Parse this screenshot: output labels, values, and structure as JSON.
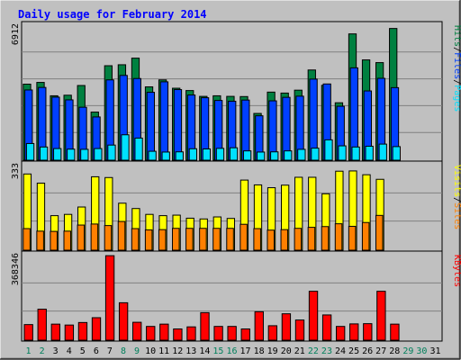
{
  "page": {
    "title": "Daily usage for February 2014"
  },
  "colors": {
    "background": "#c0c0c0",
    "hits": "#008040",
    "files": "#0040ff",
    "pages": "#00e0ff",
    "visits": "#ffff00",
    "sites": "#ff8000",
    "kbytes": "#ff0000",
    "title": "#0000ff",
    "weekend_label": "#00805c",
    "weekday_label": "#000000"
  },
  "chart_data": [
    {
      "type": "bar",
      "title": "Daily usage for February 2014",
      "ylabel_parts": [
        "Pages",
        "Files",
        "Hits"
      ],
      "ymax_label": "6912",
      "ylim": [
        0,
        6912
      ],
      "series": [
        {
          "name": "Hits",
          "values": [
            3920,
            4010,
            3320,
            3350,
            3850,
            2480,
            4870,
            4920,
            5260,
            3780,
            4140,
            3710,
            3590,
            3290,
            3320,
            3290,
            3280,
            2410,
            3510,
            3460,
            3610,
            4650,
            3860,
            2960,
            6510,
            5170,
            5030,
            6790,
            0,
            0,
            0
          ]
        },
        {
          "name": "Files",
          "values": [
            3620,
            3750,
            3250,
            3110,
            2730,
            2230,
            4140,
            4370,
            4210,
            3500,
            4040,
            3640,
            3360,
            3220,
            3080,
            3040,
            3100,
            2290,
            3060,
            3240,
            3300,
            4180,
            3930,
            2780,
            4760,
            3570,
            4220,
            3740,
            0,
            0,
            0
          ]
        },
        {
          "name": "Pages",
          "values": [
            860,
            680,
            600,
            570,
            560,
            600,
            780,
            1310,
            1140,
            460,
            420,
            430,
            590,
            580,
            610,
            640,
            480,
            420,
            430,
            480,
            560,
            620,
            1050,
            740,
            680,
            720,
            830,
            700,
            0,
            0,
            0
          ]
        }
      ],
      "x": [
        1,
        2,
        3,
        4,
        5,
        6,
        7,
        8,
        9,
        10,
        11,
        12,
        13,
        14,
        15,
        16,
        17,
        18,
        19,
        20,
        21,
        22,
        23,
        24,
        25,
        26,
        27,
        28,
        29,
        30,
        31
      ]
    },
    {
      "type": "bar",
      "ylabel_parts": [
        "Sites",
        "Visits"
      ],
      "ymax_label": "333",
      "ylim": [
        0,
        333
      ],
      "series": [
        {
          "name": "Visits",
          "values": [
            300,
            264,
            136,
            141,
            170,
            289,
            286,
            185,
            164,
            141,
            136,
            138,
            126,
            123,
            131,
            125,
            276,
            257,
            246,
            256,
            287,
            287,
            222,
            311,
            312,
            297,
            279,
            0,
            0,
            0,
            0
          ]
        },
        {
          "name": "Sites",
          "values": [
            85,
            75,
            74,
            75,
            99,
            103,
            97,
            113,
            85,
            80,
            81,
            86,
            86,
            86,
            86,
            86,
            102,
            85,
            79,
            81,
            86,
            90,
            93,
            104,
            94,
            109,
            137,
            0,
            0,
            0,
            0
          ]
        }
      ],
      "x": [
        1,
        2,
        3,
        4,
        5,
        6,
        7,
        8,
        9,
        10,
        11,
        12,
        13,
        14,
        15,
        16,
        17,
        18,
        19,
        20,
        21,
        22,
        23,
        24,
        25,
        26,
        27,
        28,
        29,
        30,
        31
      ]
    },
    {
      "type": "bar",
      "ylabel_parts": [
        "KBytes"
      ],
      "ymax_label": "368346",
      "ylim": [
        0,
        368346
      ],
      "series": [
        {
          "name": "KBytes",
          "values": [
            68000,
            135000,
            70000,
            66000,
            77000,
            98000,
            368000,
            163000,
            78000,
            60000,
            70000,
            49000,
            58000,
            120000,
            60000,
            60000,
            49000,
            124000,
            63000,
            115000,
            88000,
            213000,
            110000,
            60000,
            71000,
            72000,
            213000,
            70000,
            0,
            0,
            0
          ]
        }
      ],
      "x": [
        1,
        2,
        3,
        4,
        5,
        6,
        7,
        8,
        9,
        10,
        11,
        12,
        13,
        14,
        15,
        16,
        17,
        18,
        19,
        20,
        21,
        22,
        23,
        24,
        25,
        26,
        27,
        28,
        29,
        30,
        31
      ],
      "weekend_days": [
        1,
        2,
        8,
        9,
        15,
        16,
        22,
        23,
        29,
        30
      ]
    }
  ]
}
